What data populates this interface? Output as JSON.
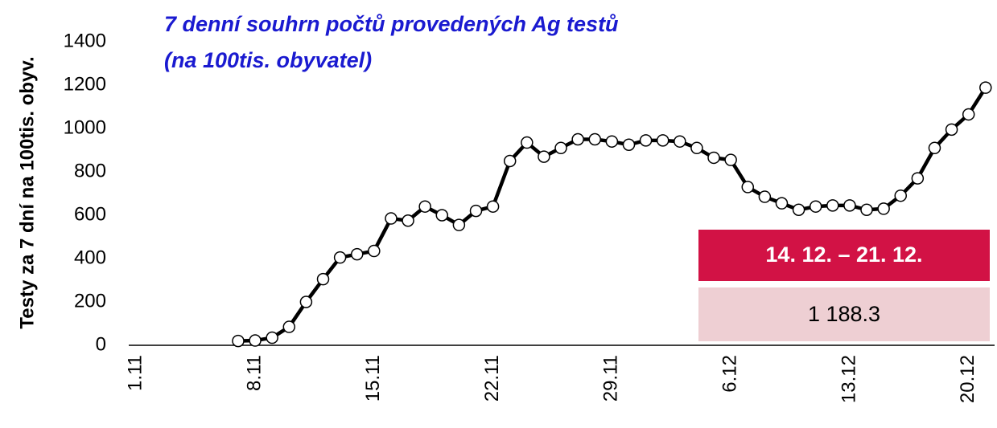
{
  "chart_data": {
    "type": "line",
    "title": [
      "7 denní souhrn počtů provedených Ag testů",
      "(na 100tis. obyvatel)"
    ],
    "y_label": "Testy za 7 dní na 100tis. obyv.",
    "categories": [
      "1.11",
      null,
      null,
      null,
      null,
      null,
      null,
      "8.11",
      null,
      null,
      null,
      null,
      null,
      null,
      "15.11",
      null,
      null,
      null,
      null,
      null,
      null,
      "22.11",
      null,
      null,
      null,
      null,
      null,
      null,
      "29.11",
      null,
      null,
      null,
      null,
      null,
      null,
      "6.12",
      null,
      null,
      null,
      null,
      null,
      null,
      "13.12",
      null,
      null,
      null,
      null,
      null,
      null,
      "20.12",
      null
    ],
    "series": [
      {
        "color": "#000000",
        "marker_color": "#ffffff",
        "values": [
          null,
          null,
          null,
          null,
          null,
          null,
          20,
          22,
          35,
          85,
          200,
          305,
          405,
          420,
          435,
          585,
          575,
          640,
          600,
          555,
          620,
          640,
          850,
          935,
          870,
          910,
          950,
          950,
          940,
          925,
          945,
          945,
          940,
          910,
          865,
          855,
          730,
          685,
          655,
          625,
          640,
          645,
          645,
          625,
          630,
          690,
          770,
          910,
          995,
          1065,
          1188.3
        ]
      }
    ],
    "ylim": [
      0,
      1400
    ],
    "yticks": [
      0,
      200,
      400,
      600,
      800,
      1000,
      1200,
      1400
    ],
    "annotation": {
      "period": "14. 12. – 21. 12.",
      "value": "1 188.3"
    }
  }
}
